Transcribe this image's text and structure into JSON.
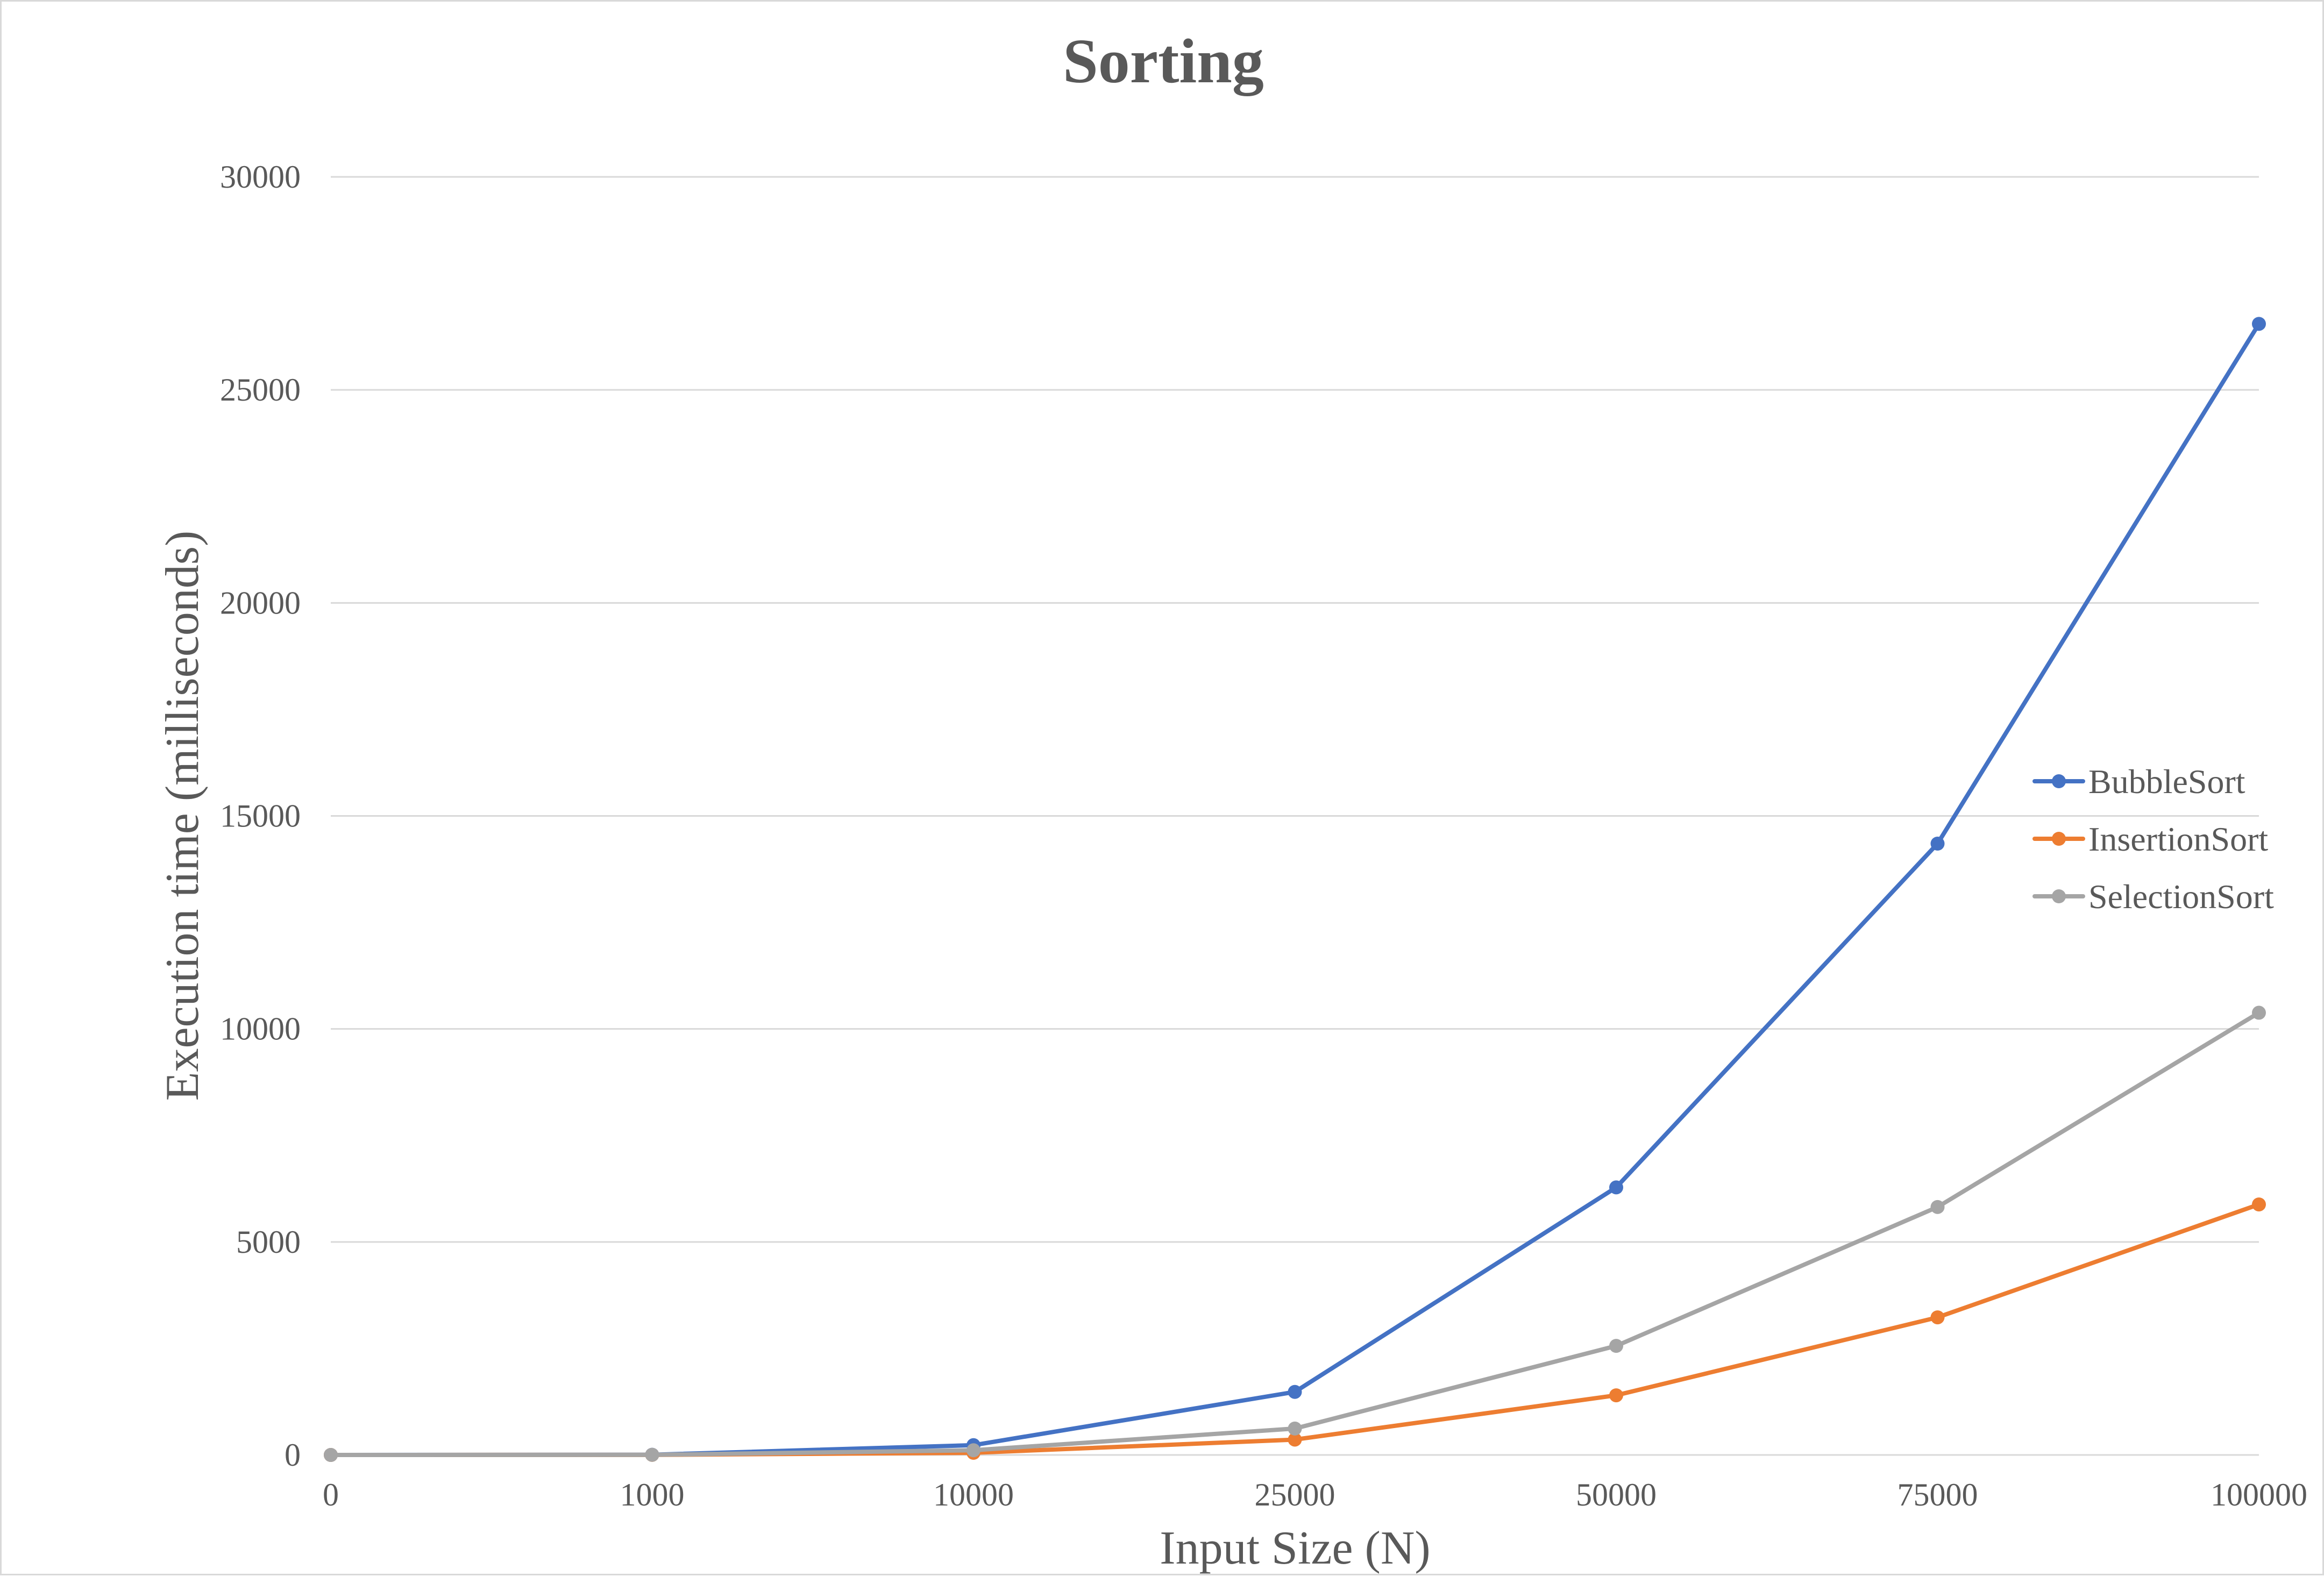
{
  "chart_data": {
    "type": "line",
    "title": "Sorting",
    "xlabel": "Input Size (N)",
    "ylabel": "Execution time (milliseconds)",
    "categories": [
      "0",
      "1000",
      "10000",
      "25000",
      "50000",
      "75000",
      "100000"
    ],
    "ylim": [
      0,
      30000
    ],
    "yticks": [
      0,
      5000,
      10000,
      15000,
      20000,
      25000,
      30000
    ],
    "grid": "horizontal",
    "legend_position": "right",
    "series": [
      {
        "name": "BubbleSort",
        "color": "#4472c4",
        "values": [
          0,
          5,
          230,
          1480,
          6280,
          14350,
          26550
        ]
      },
      {
        "name": "InsertionSort",
        "color": "#ed7d31",
        "values": [
          0,
          2,
          50,
          360,
          1400,
          3230,
          5880
        ]
      },
      {
        "name": "SelectionSort",
        "color": "#a5a5a5",
        "values": [
          0,
          3,
          110,
          620,
          2560,
          5820,
          10380
        ]
      }
    ]
  }
}
